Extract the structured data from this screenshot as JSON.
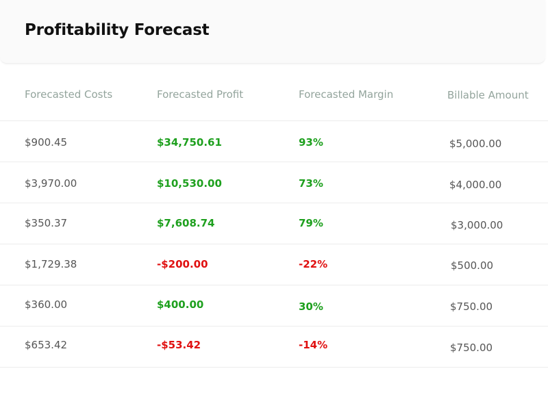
{
  "header": {
    "title": "Profitability Forecast"
  },
  "table": {
    "columns": [
      "Forecasted Costs",
      "Forecasted Profit",
      "Forecasted Margin",
      "Billable Amount"
    ],
    "rows": [
      {
        "cost": "$900.45",
        "profit": "$34,750.61",
        "margin": "93%",
        "billable": "$5,000.00",
        "status": "positive"
      },
      {
        "cost": "$3,970.00",
        "profit": "$10,530.00",
        "margin": "73%",
        "billable": "$4,000.00",
        "status": "positive"
      },
      {
        "cost": "$350.37",
        "profit": "$7,608.74",
        "margin": "79%",
        "billable": "$3,000.00",
        "status": "positive"
      },
      {
        "cost": "$1,729.38",
        "profit": "-$200.00",
        "margin": "-22%",
        "billable": "$500.00",
        "status": "negative"
      },
      {
        "cost": "$360.00",
        "profit": "$400.00",
        "margin": "30%",
        "billable": "$750.00",
        "status": "positive"
      },
      {
        "cost": "$653.42",
        "profit": "-$53.42",
        "margin": "-14%",
        "billable": "$750.00",
        "status": "negative"
      }
    ]
  },
  "colors": {
    "positive": "#1ea01e",
    "negative": "#e01010",
    "header_text": "#93a49c",
    "cell_text": "#555555"
  }
}
